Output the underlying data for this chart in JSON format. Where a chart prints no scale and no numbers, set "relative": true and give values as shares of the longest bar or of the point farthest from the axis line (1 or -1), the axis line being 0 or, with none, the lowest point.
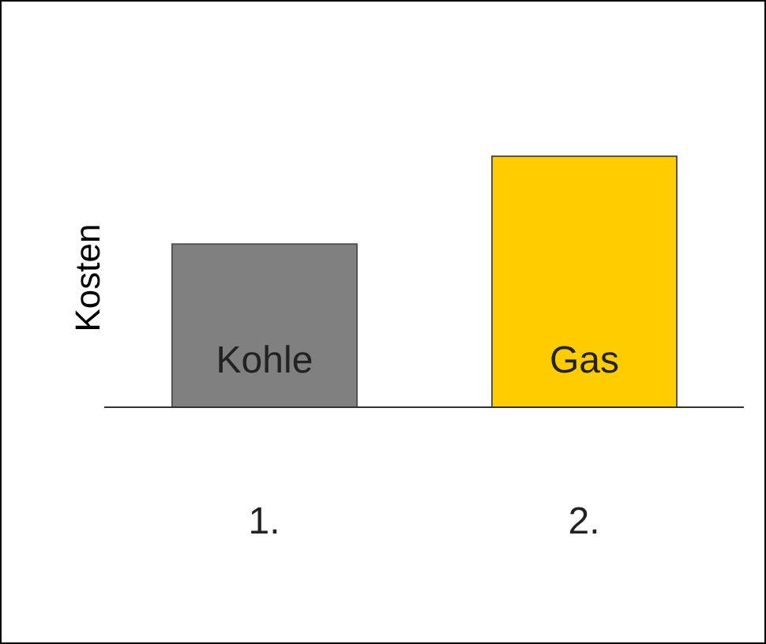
{
  "chart_data": {
    "type": "bar",
    "ylabel": "Kosten",
    "categories": [
      "1.",
      "2."
    ],
    "values": [
      0.65,
      1
    ],
    "colors": [
      "#808080",
      "#ffcc00"
    ],
    "relative": true,
    "annotations": [
      "Kohle",
      "Gas"
    ]
  }
}
